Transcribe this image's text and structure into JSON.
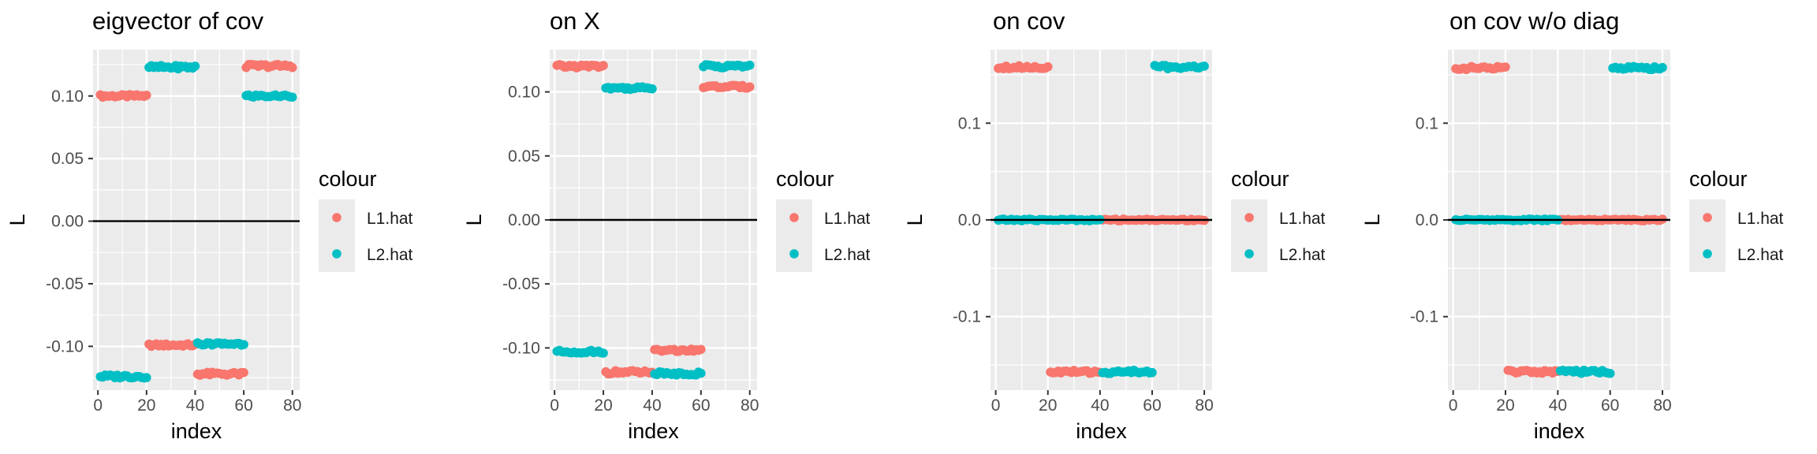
{
  "colors": {
    "L1.hat": "#F8766D",
    "L2.hat": "#00BFC4",
    "panel_bg": "#EBEBEB",
    "grid": "#FFFFFF",
    "text": "#1A1A1A",
    "tick_text": "#4D4D4D"
  },
  "chart_data": [
    {
      "type": "scatter",
      "title": "eigvector of cov",
      "xlabel": "index",
      "ylabel": "L",
      "xlim": [
        -2,
        83
      ],
      "ylim": [
        -0.135,
        0.137
      ],
      "xticks": [
        0,
        20,
        40,
        60,
        80
      ],
      "yticks": [
        -0.1,
        -0.05,
        0.0,
        0.05,
        0.1
      ],
      "ytick_labels": [
        "-0.10",
        "-0.05",
        "0.00",
        "0.05",
        "0.10"
      ],
      "hline": 0,
      "legend_title": "colour",
      "legend_position": "right",
      "series": [
        {
          "name": "L1.hat",
          "segments": [
            {
              "x_from": 1,
              "x_to": 20,
              "y": 0.1
            },
            {
              "x_from": 21,
              "x_to": 40,
              "y": -0.099
            },
            {
              "x_from": 41,
              "x_to": 60,
              "y": -0.122
            },
            {
              "x_from": 61,
              "x_to": 80,
              "y": 0.124
            }
          ]
        },
        {
          "name": "L2.hat",
          "segments": [
            {
              "x_from": 1,
              "x_to": 20,
              "y": -0.124
            },
            {
              "x_from": 21,
              "x_to": 40,
              "y": 0.123
            },
            {
              "x_from": 41,
              "x_to": 60,
              "y": -0.098
            },
            {
              "x_from": 61,
              "x_to": 80,
              "y": 0.1
            }
          ]
        }
      ]
    },
    {
      "type": "scatter",
      "title": "on X",
      "xlabel": "index",
      "ylabel": "L",
      "xlim": [
        -2,
        83
      ],
      "ylim": [
        -0.133,
        0.133
      ],
      "xticks": [
        0,
        20,
        40,
        60,
        80
      ],
      "yticks": [
        -0.1,
        -0.05,
        0.0,
        0.05,
        0.1
      ],
      "ytick_labels": [
        "-0.10",
        "-0.05",
        "0.00",
        "0.05",
        "0.10"
      ],
      "hline": 0,
      "legend_title": "colour",
      "legend_position": "right",
      "series": [
        {
          "name": "L1.hat",
          "segments": [
            {
              "x_from": 1,
              "x_to": 20,
              "y": 0.12
            },
            {
              "x_from": 21,
              "x_to": 40,
              "y": -0.119
            },
            {
              "x_from": 41,
              "x_to": 60,
              "y": -0.102
            },
            {
              "x_from": 61,
              "x_to": 80,
              "y": 0.104
            }
          ]
        },
        {
          "name": "L2.hat",
          "segments": [
            {
              "x_from": 1,
              "x_to": 20,
              "y": -0.103
            },
            {
              "x_from": 21,
              "x_to": 40,
              "y": 0.103
            },
            {
              "x_from": 41,
              "x_to": 60,
              "y": -0.12
            },
            {
              "x_from": 61,
              "x_to": 80,
              "y": 0.12
            }
          ]
        }
      ]
    },
    {
      "type": "scatter",
      "title": "on cov",
      "xlabel": "index",
      "ylabel": "L",
      "xlim": [
        -2,
        83
      ],
      "ylim": [
        -0.176,
        0.176
      ],
      "xticks": [
        0,
        20,
        40,
        60,
        80
      ],
      "yticks": [
        -0.1,
        0.0,
        0.1
      ],
      "ytick_labels": [
        "-0.1",
        "0.0",
        "0.1"
      ],
      "hline": 0,
      "legend_title": "colour",
      "legend_position": "right",
      "series": [
        {
          "name": "L1.hat",
          "segments": [
            {
              "x_from": 1,
              "x_to": 20,
              "y": 0.158
            },
            {
              "x_from": 21,
              "x_to": 40,
              "y": -0.157
            },
            {
              "x_from": 41,
              "x_to": 80,
              "y": 0.0
            }
          ]
        },
        {
          "name": "L2.hat",
          "segments": [
            {
              "x_from": 1,
              "x_to": 40,
              "y": 0.0
            },
            {
              "x_from": 41,
              "x_to": 60,
              "y": -0.157
            },
            {
              "x_from": 61,
              "x_to": 80,
              "y": 0.158
            }
          ]
        }
      ]
    },
    {
      "type": "scatter",
      "title": "on cov w/o diag",
      "xlabel": "index",
      "ylabel": "L",
      "xlim": [
        -2,
        83
      ],
      "ylim": [
        -0.176,
        0.176
      ],
      "xticks": [
        0,
        20,
        40,
        60,
        80
      ],
      "yticks": [
        -0.1,
        0.0,
        0.1
      ],
      "ytick_labels": [
        "-0.1",
        "0.0",
        "0.1"
      ],
      "hline": 0,
      "legend_title": "colour",
      "legend_position": "right",
      "series": [
        {
          "name": "L1.hat",
          "segments": [
            {
              "x_from": 1,
              "x_to": 20,
              "y": 0.157
            },
            {
              "x_from": 21,
              "x_to": 40,
              "y": -0.157
            },
            {
              "x_from": 41,
              "x_to": 80,
              "y": 0.0
            }
          ]
        },
        {
          "name": "L2.hat",
          "segments": [
            {
              "x_from": 1,
              "x_to": 40,
              "y": 0.0
            },
            {
              "x_from": 41,
              "x_to": 60,
              "y": -0.157
            },
            {
              "x_from": 61,
              "x_to": 80,
              "y": 0.157
            }
          ]
        }
      ]
    }
  ]
}
